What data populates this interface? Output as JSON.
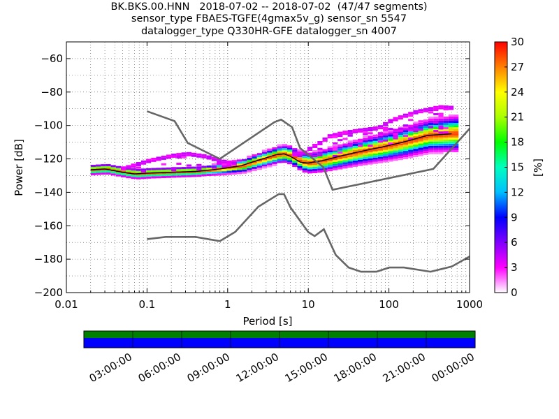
{
  "title_lines": [
    "BK.BKS.00.HNN   2018-07-02 -- 2018-07-02  (47/47 segments)",
    "sensor_type FBAES-TGFE(4gmax5v_g) sensor_sn 5547",
    "datalogger_type Q330HR-GFE datalogger_sn 4007"
  ],
  "chart_data": {
    "type": "heatmap",
    "xlabel": "Period [s]",
    "ylabel": "Power [dB]",
    "xscale": "log",
    "xlim": [
      0.01,
      1000
    ],
    "ylim": [
      -200,
      -50
    ],
    "x_tick_labels": [
      "0.01",
      "0.1",
      "1",
      "10",
      "100",
      "1000"
    ],
    "x_tick_values": [
      0.01,
      0.1,
      1,
      10,
      100,
      1000
    ],
    "y_tick_labels": [
      "−200",
      "−180",
      "−160",
      "−140",
      "−120",
      "−100",
      "−80",
      "−60"
    ],
    "y_tick_values": [
      -200,
      -180,
      -160,
      -140,
      -120,
      -100,
      -80,
      -60
    ],
    "grid": true,
    "colorbar": {
      "label": "[%]",
      "range": [
        0,
        30
      ],
      "tick_labels": [
        "0",
        "3",
        "6",
        "9",
        "12",
        "15",
        "18",
        "21",
        "24",
        "27",
        "30"
      ],
      "tick_values": [
        0,
        3,
        6,
        9,
        12,
        15,
        18,
        21,
        24,
        27,
        30
      ]
    },
    "noise_model_high": {
      "periods": [
        0.1,
        0.22,
        0.32,
        0.8,
        3.8,
        4.6,
        6.3,
        7.9,
        15.4,
        20,
        354.8,
        10000
      ],
      "power": [
        -91.5,
        -97.4,
        -110.5,
        -120,
        -98,
        -96.5,
        -101,
        -113.5,
        -125,
        -138.5,
        -126,
        -48.5
      ]
    },
    "noise_model_low": {
      "periods": [
        0.1,
        0.17,
        0.4,
        0.8,
        1.24,
        2.4,
        4.3,
        5.0,
        6.0,
        10.0,
        12.0,
        15.6,
        21.9,
        31.6,
        45.0,
        70.0,
        101.0,
        154.0,
        328.0,
        600.0,
        10000.0
      ],
      "power": [
        -168.0,
        -166.7,
        -166.7,
        -169.2,
        -163.7,
        -148.6,
        -141.1,
        -141.1,
        -149.0,
        -163.8,
        -166.2,
        -162.1,
        -177.5,
        -185.0,
        -187.5,
        -187.5,
        -185.0,
        -185.0,
        -187.5,
        -184.4,
        -151.5
      ]
    },
    "median_curve": {
      "periods": [
        0.02,
        0.03,
        0.05,
        0.07,
        0.1,
        0.2,
        0.4,
        0.8,
        1.5,
        2.5,
        4.0,
        5.0,
        6.0,
        8.0,
        10.0,
        15.0,
        20.0,
        40.0,
        80.0,
        150.0,
        300.0,
        600.0
      ],
      "power": [
        -126.5,
        -126.0,
        -128.0,
        -129.0,
        -128.5,
        -128.0,
        -127.5,
        -126.0,
        -124.0,
        -120.5,
        -117.5,
        -117.0,
        -118.5,
        -122.0,
        -122.5,
        -121.0,
        -119.5,
        -116.0,
        -113.0,
        -110.0,
        -106.0,
        -105.0
      ]
    },
    "secondary_curve": {
      "periods": [
        0.03,
        0.05,
        0.1,
        0.2,
        0.3,
        0.5,
        0.8,
        1.2,
        2.0,
        3.0,
        4.5,
        6.0,
        8.0,
        10.0,
        13.0,
        17.0,
        25.0,
        40.0,
        70.0,
        100.0,
        200.0,
        400.0,
        600.0
      ],
      "power": [
        -126.5,
        -125.0,
        -120.5,
        -117.5,
        -116.5,
        -118.0,
        -121.0,
        -122.5,
        -122.0,
        -119.5,
        -116.0,
        -116.0,
        -116.5,
        -113.0,
        -110.0,
        -106.0,
        -104.0,
        -102.5,
        -101.0,
        -96.5,
        -91.5,
        -88.5,
        -89.0
      ]
    }
  },
  "timeline": {
    "tick_labels": [
      "03:00:00",
      "06:00:00",
      "09:00:00",
      "12:00:00",
      "15:00:00",
      "18:00:00",
      "21:00:00",
      "00:00:00"
    ],
    "tick_hours": [
      3,
      6,
      9,
      12,
      15,
      18,
      21,
      24
    ],
    "span_hours": 24,
    "colors": {
      "top": "#008000",
      "bottom": "#0000ff"
    }
  },
  "colors": {
    "noise_model": "#666666",
    "grid": "#000000",
    "frame": "#000000"
  }
}
